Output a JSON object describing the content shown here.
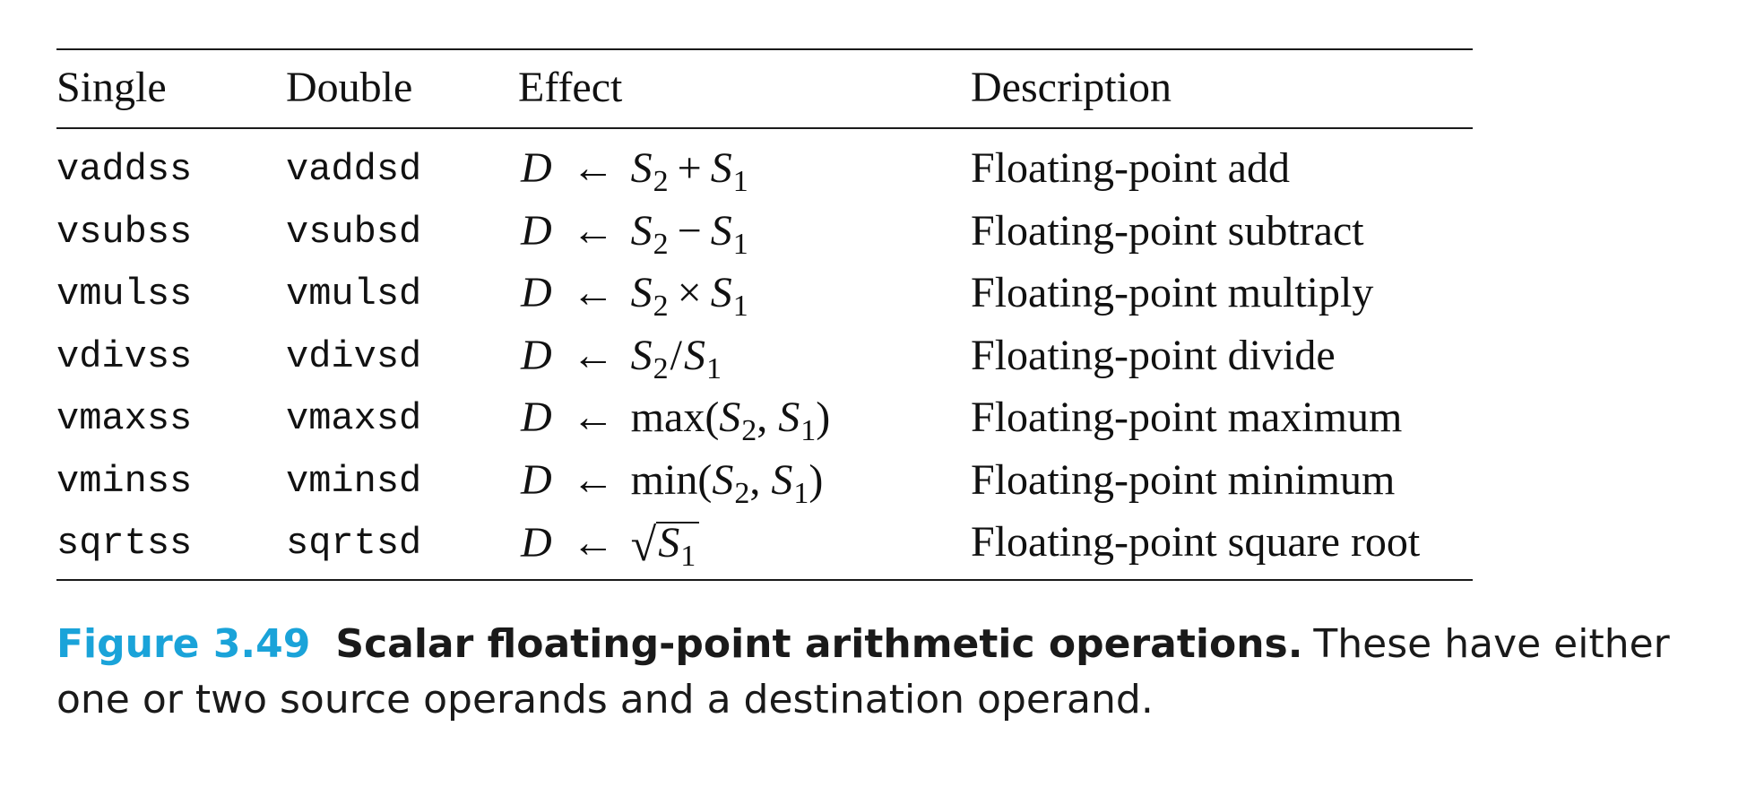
{
  "table": {
    "headers": {
      "single": "Single",
      "double": "Double",
      "effect": "Effect",
      "description": "Description"
    },
    "rows": [
      {
        "single": "vaddss",
        "double": "vaddsd",
        "dest": "D",
        "arrow": "←",
        "expr_type": "binary",
        "lhs": "S",
        "lhs_sub": "2",
        "operator": "+",
        "rhs": "S",
        "rhs_sub": "1",
        "description": "Floating-point add"
      },
      {
        "single": "vsubss",
        "double": "vsubsd",
        "dest": "D",
        "arrow": "←",
        "expr_type": "binary",
        "lhs": "S",
        "lhs_sub": "2",
        "operator": "−",
        "rhs": "S",
        "rhs_sub": "1",
        "description": "Floating-point subtract"
      },
      {
        "single": "vmulss",
        "double": "vmulsd",
        "dest": "D",
        "arrow": "←",
        "expr_type": "binary",
        "lhs": "S",
        "lhs_sub": "2",
        "operator": "×",
        "rhs": "S",
        "rhs_sub": "1",
        "description": "Floating-point multiply"
      },
      {
        "single": "vdivss",
        "double": "vdivsd",
        "dest": "D",
        "arrow": "←",
        "expr_type": "divide",
        "lhs": "S",
        "lhs_sub": "2",
        "operator": "/",
        "rhs": "S",
        "rhs_sub": "1",
        "description": "Floating-point divide"
      },
      {
        "single": "vmaxss",
        "double": "vmaxsd",
        "dest": "D",
        "arrow": "←",
        "expr_type": "function",
        "func": "max",
        "arg1": "S",
        "arg1_sub": "2",
        "arg2": "S",
        "arg2_sub": "1",
        "description": "Floating-point maximum"
      },
      {
        "single": "vminss",
        "double": "vminsd",
        "dest": "D",
        "arrow": "←",
        "expr_type": "function",
        "func": "min",
        "arg1": "S",
        "arg1_sub": "2",
        "arg2": "S",
        "arg2_sub": "1",
        "description": "Floating-point minimum"
      },
      {
        "single": "sqrtss",
        "double": "sqrtsd",
        "dest": "D",
        "arrow": "←",
        "expr_type": "sqrt",
        "radical": "√",
        "arg1": "S",
        "arg1_sub": "1",
        "description": "Floating-point square root"
      }
    ]
  },
  "caption": {
    "label": "Figure 3.49",
    "title": "Scalar floating-point arithmetic operations.",
    "text": "These have either one or two source operands and a destination operand."
  }
}
